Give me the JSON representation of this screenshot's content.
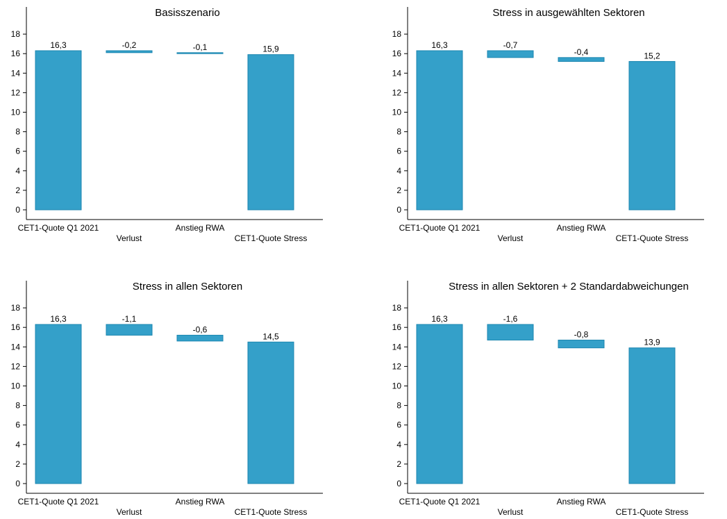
{
  "chart_data": [
    {
      "type": "waterfall",
      "title": "Basisszenario",
      "categories": [
        "CET1-Quote Q1 2021",
        "Verlust",
        "Anstieg RWA",
        "CET1-Quote Stress"
      ],
      "values": [
        16.3,
        -0.2,
        -0.1,
        15.9
      ],
      "data_labels": [
        "16,3",
        "-0,2",
        "-0,1",
        "15,9"
      ],
      "yticks": [
        0,
        2,
        4,
        6,
        8,
        10,
        12,
        14,
        16,
        18
      ],
      "ylim": [
        0,
        20
      ],
      "grid": false
    },
    {
      "type": "waterfall",
      "title": "Stress in ausgewählten Sektoren",
      "categories": [
        "CET1-Quote Q1 2021",
        "Verlust",
        "Anstieg RWA",
        "CET1-Quote Stress"
      ],
      "values": [
        16.3,
        -0.7,
        -0.4,
        15.2
      ],
      "data_labels": [
        "16,3",
        "-0,7",
        "-0,4",
        "15,2"
      ],
      "yticks": [
        0,
        2,
        4,
        6,
        8,
        10,
        12,
        14,
        16,
        18
      ],
      "ylim": [
        0,
        20
      ],
      "grid": false
    },
    {
      "type": "waterfall",
      "title": "Stress in allen Sektoren",
      "categories": [
        "CET1-Quote Q1 2021",
        "Verlust",
        "Anstieg RWA",
        "CET1-Quote Stress"
      ],
      "values": [
        16.3,
        -1.1,
        -0.6,
        14.5
      ],
      "data_labels": [
        "16,3",
        "-1,1",
        "-0,6",
        "14,5"
      ],
      "yticks": [
        0,
        2,
        4,
        6,
        8,
        10,
        12,
        14,
        16,
        18
      ],
      "ylim": [
        0,
        20
      ],
      "grid": false
    },
    {
      "type": "waterfall",
      "title": "Stress in allen Sektoren + 2 Standardabweichungen",
      "categories": [
        "CET1-Quote Q1 2021",
        "Verlust",
        "Anstieg RWA",
        "CET1-Quote Stress"
      ],
      "values": [
        16.3,
        -1.6,
        -0.8,
        13.9
      ],
      "data_labels": [
        "16,3",
        "-1,6",
        "-0,8",
        "13,9"
      ],
      "yticks": [
        0,
        2,
        4,
        6,
        8,
        10,
        12,
        14,
        16,
        18
      ],
      "ylim": [
        0,
        20
      ],
      "grid": false
    }
  ],
  "colors": {
    "bar_fill": "#34a0c9",
    "bar_stroke": "#1b86b0",
    "axis": "#000000",
    "text": "#000000"
  }
}
